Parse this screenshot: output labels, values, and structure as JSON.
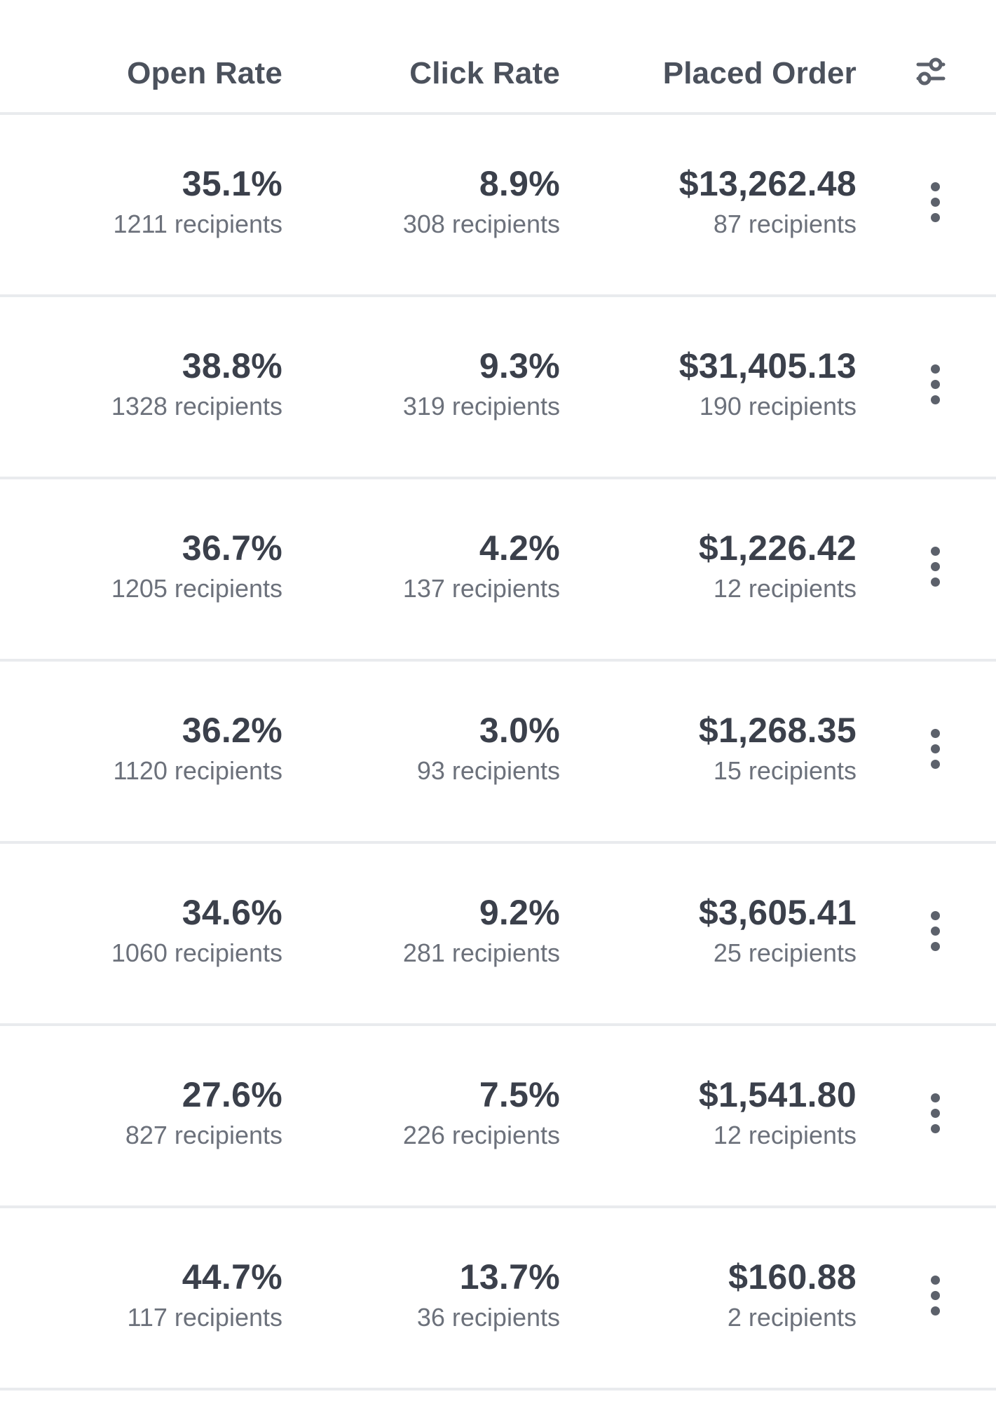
{
  "header": {
    "open_rate": "Open Rate",
    "click_rate": "Click Rate",
    "placed_order": "Placed Order",
    "settings_icon": "sliders-settings-icon"
  },
  "rows": [
    {
      "open": "35.1%",
      "open_sub": "1211 recipients",
      "click": "8.9%",
      "click_sub": "308 recipients",
      "order": "$13,262.48",
      "order_sub": "87 recipients"
    },
    {
      "open": "38.8%",
      "open_sub": "1328 recipients",
      "click": "9.3%",
      "click_sub": "319 recipients",
      "order": "$31,405.13",
      "order_sub": "190 recipients"
    },
    {
      "open": "36.7%",
      "open_sub": "1205 recipients",
      "click": "4.2%",
      "click_sub": "137 recipients",
      "order": "$1,226.42",
      "order_sub": "12 recipients"
    },
    {
      "open": "36.2%",
      "open_sub": "1120 recipients",
      "click": "3.0%",
      "click_sub": "93 recipients",
      "order": "$1,268.35",
      "order_sub": "15 recipients"
    },
    {
      "open": "34.6%",
      "open_sub": "1060 recipients",
      "click": "9.2%",
      "click_sub": "281 recipients",
      "order": "$3,605.41",
      "order_sub": "25 recipients"
    },
    {
      "open": "27.6%",
      "open_sub": "827 recipients",
      "click": "7.5%",
      "click_sub": "226 recipients",
      "order": "$1,541.80",
      "order_sub": "12 recipients"
    },
    {
      "open": "44.7%",
      "open_sub": "117 recipients",
      "click": "13.7%",
      "click_sub": "36 recipients",
      "order": "$160.88",
      "order_sub": "2 recipients"
    }
  ],
  "colors": {
    "text_primary": "#3b404b",
    "text_secondary": "#6c717b",
    "divider": "#e9ebee",
    "icon": "#5c616b"
  }
}
